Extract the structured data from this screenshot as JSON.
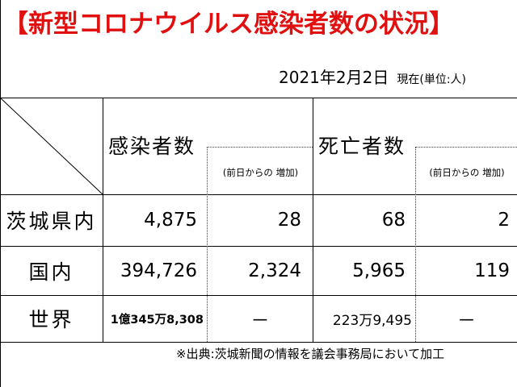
{
  "title": "【新型コロナウイルス感染者数の状況】",
  "date": "2021年2月2日",
  "unit": "現在(単位:人)",
  "headers": {
    "infected": "感染者数",
    "infected_increase": "(前日からの 増加)",
    "deaths": "死亡者数",
    "deaths_increase": "(前日からの 増加)"
  },
  "rows": [
    {
      "label": "茨城県内",
      "infected": "4,875",
      "infected_increase": "28",
      "deaths": "68",
      "deaths_increase": "2"
    },
    {
      "label": "国内",
      "infected": "394,726",
      "infected_increase": "2,324",
      "deaths": "5,965",
      "deaths_increase": "119"
    },
    {
      "label": "世界",
      "infected": "1億345万8,308",
      "infected_increase": "－",
      "deaths": "223万9,495",
      "deaths_increase": "－"
    }
  ],
  "source": "※出典:茨城新聞の情報を議会事務局において加工"
}
